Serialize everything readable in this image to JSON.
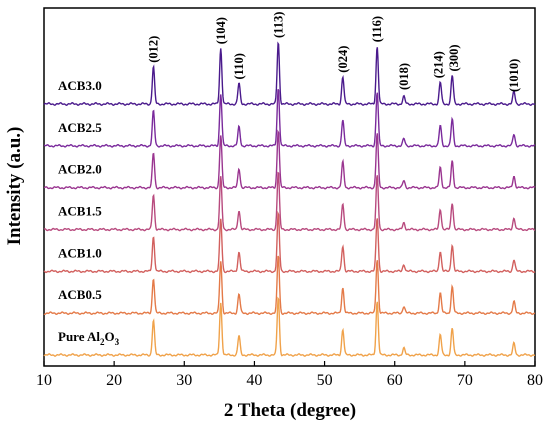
{
  "chart_data": {
    "type": "line",
    "xlabel": "2 Theta (degree)",
    "ylabel": "Intensity (a.u.)",
    "xlim": [
      10,
      80
    ],
    "x_ticks": [
      "10",
      "20",
      "30",
      "40",
      "50",
      "60",
      "70",
      "80"
    ],
    "y_ticks_shown": false,
    "legend": "none",
    "peaks": [
      {
        "label": "(012)",
        "two_theta": 25.6,
        "rel_intensity": 0.6
      },
      {
        "label": "(104)",
        "two_theta": 35.2,
        "rel_intensity": 0.9
      },
      {
        "label": "(110)",
        "two_theta": 37.8,
        "rel_intensity": 0.33
      },
      {
        "label": "(113)",
        "two_theta": 43.4,
        "rel_intensity": 1.0
      },
      {
        "label": "(024)",
        "two_theta": 52.6,
        "rel_intensity": 0.44
      },
      {
        "label": "(116)",
        "two_theta": 57.5,
        "rel_intensity": 0.93
      },
      {
        "label": "(018)",
        "two_theta": 61.3,
        "rel_intensity": 0.12
      },
      {
        "label": "(214)",
        "two_theta": 66.5,
        "rel_intensity": 0.35
      },
      {
        "label": "(300)",
        "two_theta": 68.2,
        "rel_intensity": 0.46
      },
      {
        "label": "(1010)",
        "two_theta": 77.0,
        "rel_intensity": 0.2
      }
    ],
    "series": [
      {
        "name": "ACB3.0",
        "color": "#4a1a8c"
      },
      {
        "name": "ACB2.5",
        "color": "#7a2a9c"
      },
      {
        "name": "ACB2.0",
        "color": "#9a3590"
      },
      {
        "name": "ACB1.5",
        "color": "#b84a7e"
      },
      {
        "name": "ACB1.0",
        "color": "#d2605e"
      },
      {
        "name": "ACB0.5",
        "color": "#e47a48"
      },
      {
        "name": "Pure Al2O3",
        "name_main": "Pure Al",
        "name_sub1": "2",
        "name_mid": "O",
        "name_sub2": "3",
        "color": "#f0a24a"
      }
    ]
  }
}
